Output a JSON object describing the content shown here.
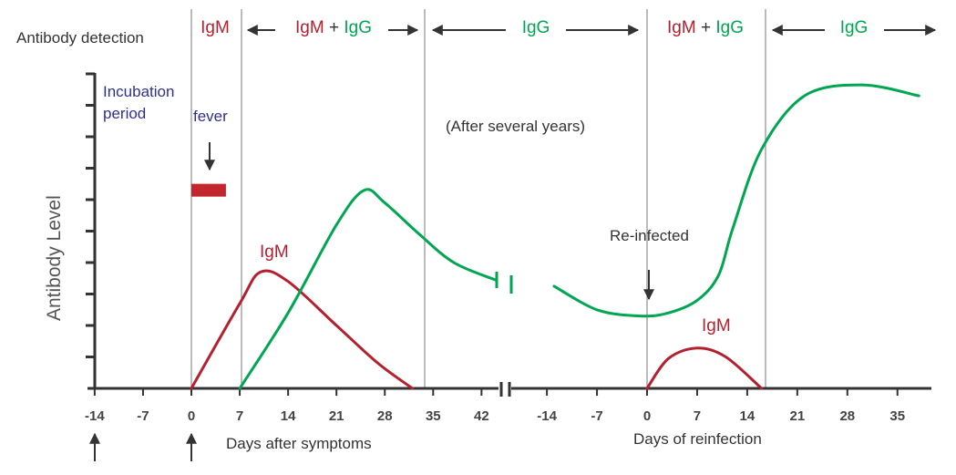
{
  "chart_data": {
    "type": "line",
    "title": "Antibody detection",
    "ylabel": "Antibody  Level",
    "xlabel_primary": "Days after symptoms",
    "xlabel_reinfection": "Days of reinfection",
    "x_ticks": [
      "-14",
      "-7",
      "0",
      "7",
      "14",
      "21",
      "28",
      "35",
      "42",
      "-14",
      "-7",
      "0",
      "7",
      "14",
      "21",
      "28",
      "35"
    ],
    "y_ticks": 10,
    "detection_phases": [
      {
        "kind": "igm_only",
        "igm": "IgM"
      },
      {
        "kind": "both",
        "igm": "IgM",
        "plus": "+",
        "igg": "IgG"
      },
      {
        "kind": "igg_only",
        "igg": "IgG"
      },
      {
        "kind": "both",
        "igm": "IgM",
        "plus": "+",
        "igg": "IgG"
      },
      {
        "kind": "igg_only",
        "igg": "IgG"
      }
    ],
    "annotations": {
      "incubation_1": "Incubation",
      "incubation_2": "period",
      "fever": "fever",
      "several_years": "(After several years)",
      "reinfected": "Re-infected",
      "igm_primary": "IgM",
      "igm_reinfection": "IgM"
    },
    "series": [
      {
        "name": "IgM (primary)",
        "color": "#b5202e",
        "points": [
          [
            0,
            0
          ],
          [
            7,
            2.7
          ],
          [
            10,
            3.7
          ],
          [
            14,
            3.4
          ],
          [
            21,
            2.0
          ],
          [
            27,
            0.8
          ],
          [
            32,
            0
          ]
        ]
      },
      {
        "name": "IgG",
        "color": "#00a651",
        "points": [
          [
            7,
            0
          ],
          [
            14,
            2.4
          ],
          [
            21,
            5.2
          ],
          [
            25,
            6.3
          ],
          [
            28,
            5.9
          ],
          [
            33,
            4.9
          ],
          [
            38,
            4.0
          ],
          [
            44,
            3.45
          ]
        ]
      },
      {
        "name": "IgG (after reinfection)",
        "color": "#00a651",
        "points": [
          [
            -13,
            3.25
          ],
          [
            -7,
            2.5
          ],
          [
            -1,
            2.3
          ],
          [
            3,
            2.4
          ],
          [
            7,
            2.8
          ],
          [
            10,
            3.6
          ],
          [
            12,
            5.1
          ],
          [
            16,
            7.6
          ],
          [
            22,
            9.3
          ],
          [
            30,
            9.65
          ],
          [
            38,
            9.3
          ]
        ]
      },
      {
        "name": "IgM (reinfection)",
        "color": "#b5202e",
        "points": [
          [
            0,
            0
          ],
          [
            3,
            0.95
          ],
          [
            7,
            1.28
          ],
          [
            11,
            1.0
          ],
          [
            16,
            0
          ]
        ]
      }
    ],
    "fever_bar": {
      "x_from": 0,
      "x_to": 5,
      "y": 6.3,
      "color": "#c1272d"
    },
    "colors": {
      "igm": "#b5202e",
      "igg": "#00a651",
      "annotation": "#2e3192",
      "axis": "#333333"
    }
  }
}
